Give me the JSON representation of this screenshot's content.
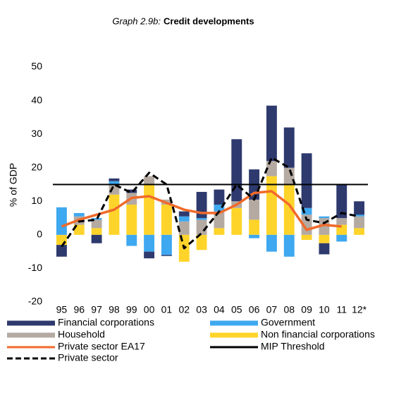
{
  "chart_data": {
    "type": "bar",
    "title_prefix": "Graph 2.9b:",
    "title": "Credit developments",
    "y_label": "% of GDP",
    "categories": [
      "95",
      "96",
      "97",
      "98",
      "99",
      "00",
      "01",
      "02",
      "03",
      "04",
      "05",
      "06",
      "07",
      "08",
      "09",
      "10",
      "11",
      "12*"
    ],
    "ylim": [
      -20,
      50
    ],
    "yticks": [
      -20,
      -10,
      0,
      10,
      20,
      30,
      40,
      50
    ],
    "series": [
      {
        "name": "Financial corporations",
        "type": "bar",
        "color": "#2e3a6e",
        "values": [
          -3.5,
          0,
          -2.5,
          0.8,
          1,
          -2,
          -0.3,
          1.5,
          7.8,
          4.5,
          18.5,
          9,
          16.5,
          12,
          16.3,
          -3.3,
          10,
          4
        ]
      },
      {
        "name": "Government",
        "type": "bar",
        "color": "#3ea8f0",
        "values": [
          8.2,
          1,
          0.5,
          1,
          -3.3,
          -5,
          -6,
          1.5,
          0.5,
          2,
          0,
          -1,
          -5,
          -6.5,
          2,
          0.5,
          -2,
          0.5
        ]
      },
      {
        "name": "Household",
        "type": "bar",
        "color": "#b4aaa2",
        "values": [
          0,
          2.5,
          2.5,
          3,
          3.5,
          2.5,
          1.5,
          4,
          4.5,
          5,
          2,
          6,
          4.5,
          5,
          6,
          5,
          2,
          3.5
        ]
      },
      {
        "name": "Non financial corporations",
        "type": "bar",
        "color": "#ffd42a",
        "values": [
          -3,
          3,
          2,
          12,
          9,
          15,
          9,
          -8,
          -4.5,
          2,
          8,
          4.5,
          17.5,
          15,
          -1.5,
          -2.5,
          3,
          2
        ]
      },
      {
        "name": "Private sector EA17",
        "type": "line",
        "color": "#f06a2b",
        "values": [
          2.5,
          4.5,
          6,
          7.5,
          11,
          11.5,
          9.5,
          7.5,
          6.5,
          6.5,
          9,
          12.5,
          13,
          9,
          1.5,
          3,
          2.5,
          null
        ]
      },
      {
        "name": "MIP Threshold",
        "type": "hline",
        "color": "#000000",
        "value": 15
      },
      {
        "name": "Private sector",
        "type": "line",
        "dashed": true,
        "color": "#000000",
        "values": [
          -3.5,
          4,
          4.5,
          15,
          12.5,
          18.5,
          15,
          -4,
          0.5,
          7,
          15,
          10.5,
          23,
          20,
          4.5,
          3.5,
          6.5,
          5.5
        ]
      }
    ]
  }
}
